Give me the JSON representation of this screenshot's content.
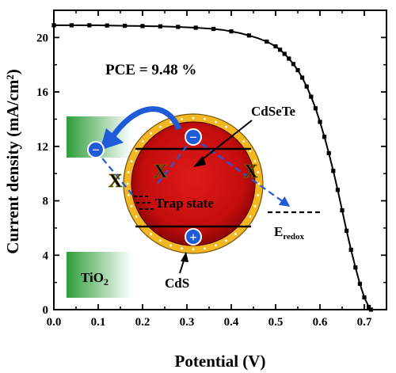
{
  "chart_data": {
    "type": "line",
    "xlabel": "Potential (V)",
    "ylabel": "Current density (mA/cm²)",
    "xlim": [
      0.0,
      0.75
    ],
    "ylim": [
      0,
      22
    ],
    "x_ticks": [
      "0.0",
      "0.1",
      "0.2",
      "0.3",
      "0.4",
      "0.5",
      "0.6",
      "0.7"
    ],
    "y_ticks": [
      "0",
      "4",
      "8",
      "12",
      "16",
      "20"
    ],
    "grid": false,
    "annotation": "PCE = 9.48 %",
    "series": [
      {
        "marker": "square",
        "color": "#000000",
        "x": [
          0.0,
          0.02,
          0.04,
          0.06,
          0.08,
          0.1,
          0.12,
          0.14,
          0.16,
          0.18,
          0.2,
          0.22,
          0.24,
          0.26,
          0.28,
          0.3,
          0.32,
          0.34,
          0.36,
          0.38,
          0.4,
          0.42,
          0.44,
          0.46,
          0.48,
          0.5,
          0.51,
          0.52,
          0.53,
          0.54,
          0.55,
          0.56,
          0.57,
          0.58,
          0.59,
          0.6,
          0.61,
          0.62,
          0.63,
          0.64,
          0.65,
          0.66,
          0.67,
          0.68,
          0.69,
          0.7,
          0.71,
          0.715
        ],
        "y": [
          20.9,
          20.9,
          20.9,
          20.9,
          20.9,
          20.9,
          20.88,
          20.87,
          20.86,
          20.85,
          20.84,
          20.83,
          20.82,
          20.8,
          20.78,
          20.75,
          20.72,
          20.68,
          20.63,
          20.56,
          20.45,
          20.32,
          20.15,
          19.95,
          19.7,
          19.35,
          19.1,
          18.8,
          18.45,
          18.05,
          17.6,
          17.05,
          16.4,
          15.65,
          14.8,
          13.8,
          12.7,
          11.5,
          10.2,
          8.8,
          7.3,
          5.8,
          4.4,
          3.1,
          1.9,
          0.9,
          0.2,
          0.0
        ]
      }
    ]
  },
  "inset": {
    "label_cdsete": "CdSeTe",
    "label_trap": "Trap state",
    "label_cds": "CdS",
    "label_tio2_main": "TiO",
    "label_tio2_sub": "2",
    "label_eredox_main": "E",
    "label_eredox_sub": "redox",
    "electron_symbol": "−",
    "hole_symbol": "+",
    "blocked_symbol": "X",
    "colors": {
      "core": "#cc1010",
      "shell": "#f2b824",
      "tio2_band": "#3aaa35",
      "arrow": "#1f5bd8",
      "blocked": "#f2e200"
    }
  }
}
